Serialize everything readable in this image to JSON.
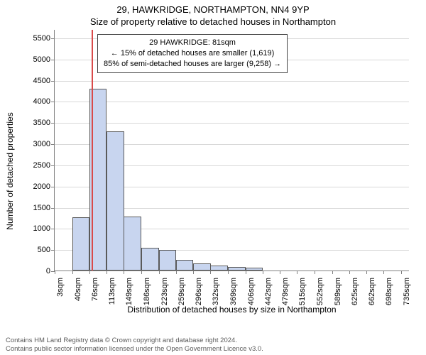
{
  "titles": {
    "main": "29, HAWKRIDGE, NORTHAMPTON, NN4 9YP",
    "sub": "Size of property relative to detached houses in Northampton"
  },
  "chart": {
    "type": "histogram",
    "y_axis": {
      "label": "Number of detached properties",
      "min": 0,
      "max": 5700,
      "ticks": [
        0,
        500,
        1000,
        1500,
        2000,
        2500,
        3000,
        3500,
        4000,
        4500,
        5000,
        5500
      ],
      "label_fontsize": 12,
      "tick_fontsize": 11
    },
    "x_axis": {
      "label": "Distribution of detached houses by size in Northampton",
      "ticks": [
        3,
        40,
        76,
        113,
        149,
        186,
        223,
        259,
        296,
        332,
        369,
        406,
        442,
        479,
        515,
        552,
        589,
        625,
        662,
        698,
        735
      ],
      "unit": "sqm",
      "min": 3,
      "max": 753,
      "label_fontsize": 12,
      "tick_fontsize": 11
    },
    "bars": {
      "bin_width": 37,
      "starts": [
        3,
        40,
        76,
        113,
        149,
        186,
        223,
        259,
        296,
        332,
        369,
        406
      ],
      "values": [
        0,
        1250,
        4300,
        3280,
        1280,
        530,
        480,
        260,
        160,
        110,
        80,
        60
      ],
      "fill_color": "#c8d5ef",
      "border_color": "#5a5a5a"
    },
    "marker": {
      "x": 81,
      "color": "#d94a4a"
    },
    "annotation": {
      "lines": [
        "29 HAWKRIDGE: 81sqm",
        "← 15% of detached houses are smaller (1,619)",
        "85% of semi-detached houses are larger (9,258) →"
      ],
      "border_color": "#444444",
      "fontsize": 11
    },
    "colors": {
      "background": "#ffffff",
      "grid": "#d8d8d8",
      "axis": "#808080",
      "text": "#000000"
    }
  },
  "footer": {
    "line1": "Contains HM Land Registry data © Crown copyright and database right 2024.",
    "line2": "Contains public sector information licensed under the Open Government Licence v3.0.",
    "color": "#5a5a5a",
    "fontsize": 9.5
  }
}
